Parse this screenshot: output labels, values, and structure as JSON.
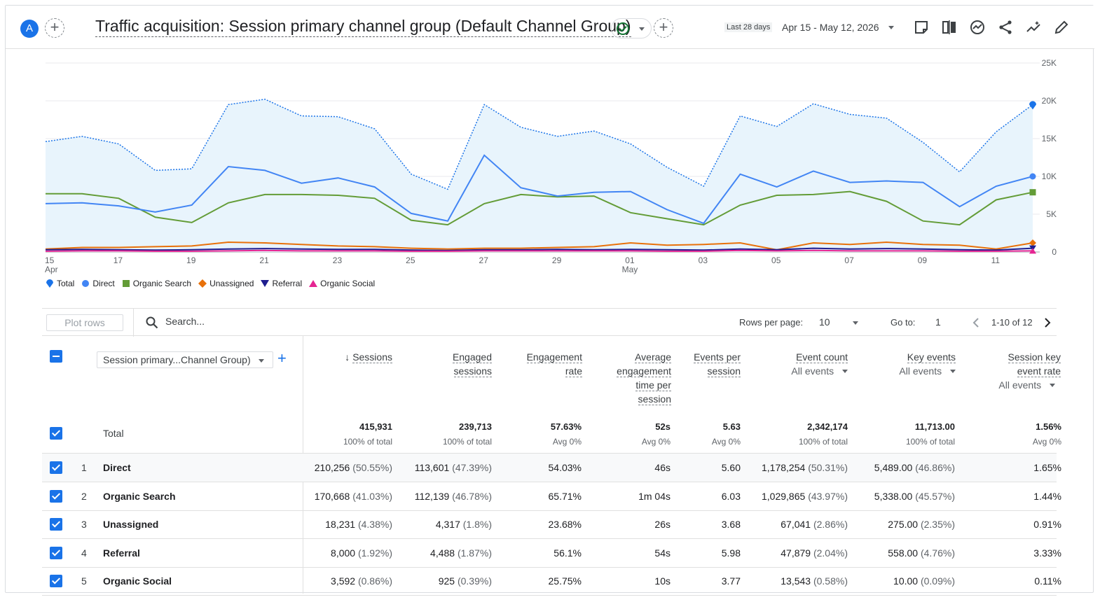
{
  "header": {
    "avatar_letter": "A",
    "title": "Traffic acquisition: Session primary channel group (Default Channel Group)",
    "date_label": "Last 28 days",
    "date_range": "Apr 15 - May 12, 2026"
  },
  "chart_data": {
    "type": "line",
    "x": [
      "Apr 15",
      "Apr 16",
      "Apr 17",
      "Apr 18",
      "Apr 19",
      "Apr 20",
      "Apr 21",
      "Apr 22",
      "Apr 23",
      "Apr 24",
      "Apr 25",
      "Apr 26",
      "Apr 27",
      "Apr 28",
      "Apr 29",
      "Apr 30",
      "May 01",
      "May 02",
      "May 03",
      "May 04",
      "May 05",
      "May 06",
      "May 07",
      "May 08",
      "May 09",
      "May 10",
      "May 11",
      "May 12"
    ],
    "x_tick_labels": [
      {
        "idx": 0,
        "label": "15",
        "sub": "Apr"
      },
      {
        "idx": 2,
        "label": "17"
      },
      {
        "idx": 4,
        "label": "19"
      },
      {
        "idx": 6,
        "label": "21"
      },
      {
        "idx": 8,
        "label": "23"
      },
      {
        "idx": 10,
        "label": "25"
      },
      {
        "idx": 12,
        "label": "27"
      },
      {
        "idx": 14,
        "label": "29"
      },
      {
        "idx": 16,
        "label": "01",
        "sub": "May"
      },
      {
        "idx": 18,
        "label": "03"
      },
      {
        "idx": 20,
        "label": "05"
      },
      {
        "idx": 22,
        "label": "07"
      },
      {
        "idx": 24,
        "label": "09"
      },
      {
        "idx": 26,
        "label": "11"
      }
    ],
    "y_ticks": [
      "0",
      "5K",
      "10K",
      "15K",
      "20K",
      "25K"
    ],
    "ylim": [
      0,
      25000
    ],
    "grid": true,
    "legend_position": "bottom-left",
    "series": [
      {
        "name": "Total",
        "color": "#1a73e8",
        "dashed": true,
        "filled": true,
        "values": [
          14600,
          15300,
          14300,
          10800,
          11000,
          19500,
          20200,
          18000,
          17900,
          16300,
          10300,
          8300,
          19500,
          16500,
          15300,
          16000,
          14300,
          11200,
          8700,
          18000,
          16600,
          19600,
          18200,
          17700,
          14500,
          10600,
          15900,
          19500
        ]
      },
      {
        "name": "Direct",
        "color": "#4285f4",
        "values": [
          6400,
          6500,
          6100,
          5300,
          6200,
          11300,
          10800,
          9100,
          9800,
          8600,
          5100,
          4100,
          12800,
          8500,
          7400,
          7900,
          8000,
          5600,
          3800,
          10300,
          8600,
          10700,
          9200,
          9400,
          9200,
          6000,
          8700,
          10000
        ]
      },
      {
        "name": "Organic Search",
        "color": "#639c37",
        "values": [
          7700,
          7700,
          7100,
          4600,
          3900,
          6500,
          7600,
          7600,
          7500,
          7100,
          4200,
          3600,
          6400,
          7600,
          7300,
          7400,
          5200,
          4400,
          3600,
          6200,
          7500,
          7600,
          8000,
          6700,
          4100,
          3600,
          6900,
          7900
        ]
      },
      {
        "name": "Unassigned",
        "color": "#e8710a",
        "values": [
          400,
          600,
          600,
          700,
          800,
          1300,
          1200,
          1000,
          800,
          700,
          500,
          400,
          500,
          500,
          600,
          700,
          1200,
          900,
          1000,
          1200,
          300,
          1200,
          1000,
          1300,
          1000,
          900,
          400,
          1200
        ]
      },
      {
        "name": "Referral",
        "color": "#1f1e8f",
        "values": [
          300,
          350,
          300,
          250,
          300,
          400,
          450,
          400,
          350,
          350,
          250,
          200,
          300,
          300,
          350,
          300,
          350,
          300,
          250,
          400,
          300,
          500,
          400,
          450,
          400,
          300,
          250,
          500
        ]
      },
      {
        "name": "Organic Social",
        "color": "#e52592",
        "values": [
          100,
          150,
          150,
          100,
          100,
          150,
          200,
          150,
          150,
          150,
          100,
          100,
          150,
          150,
          150,
          150,
          150,
          100,
          100,
          200,
          150,
          200,
          150,
          150,
          150,
          100,
          100,
          150
        ]
      }
    ]
  },
  "legend": [
    {
      "label": "Total",
      "color": "#1a73e8",
      "shape": "pin"
    },
    {
      "label": "Direct",
      "color": "#4285f4",
      "shape": "circle"
    },
    {
      "label": "Organic Search",
      "color": "#639c37",
      "shape": "square"
    },
    {
      "label": "Unassigned",
      "color": "#e8710a",
      "shape": "diamond"
    },
    {
      "label": "Referral",
      "color": "#1f1e8f",
      "shape": "triangle-down"
    },
    {
      "label": "Organic Social",
      "color": "#e52592",
      "shape": "triangle-up"
    }
  ],
  "toolbar": {
    "plot_rows": "Plot rows",
    "search_placeholder": "Search...",
    "rows_per_page_label": "Rows per page:",
    "rows_per_page_value": "10",
    "goto_label": "Go to:",
    "goto_value": "1",
    "pagination": "1-10 of 12"
  },
  "table": {
    "dimension": "Session primary...Channel Group)",
    "columns": [
      {
        "label": "Sessions",
        "sorted": true
      },
      {
        "label": "Engaged sessions"
      },
      {
        "label": "Engagement rate"
      },
      {
        "label": "Average engagement time per session"
      },
      {
        "label": "Events per session"
      },
      {
        "label": "Event count",
        "sub": "All events"
      },
      {
        "label": "Key events",
        "sub": "All events"
      },
      {
        "label": "Session key event rate",
        "sub": "All events"
      }
    ],
    "total": {
      "label": "Total",
      "values": [
        "415,931",
        "239,713",
        "57.63%",
        "52s",
        "5.63",
        "2,342,174",
        "11,713.00",
        "1.56%"
      ],
      "subs": [
        "100% of total",
        "100% of total",
        "Avg 0%",
        "Avg 0%",
        "Avg 0%",
        "100% of total",
        "100% of total",
        "Avg 0%"
      ]
    },
    "rows": [
      {
        "idx": "1",
        "name": "Direct",
        "values": [
          "210,256",
          "113,601",
          "54.03%",
          "46s",
          "5.60",
          "1,178,254",
          "5,489.00",
          "1.65%"
        ],
        "pcts": [
          "(50.55%)",
          "(47.39%)",
          "",
          "",
          "",
          "(50.31%)",
          "(46.86%)",
          ""
        ]
      },
      {
        "idx": "2",
        "name": "Organic Search",
        "values": [
          "170,668",
          "112,139",
          "65.71%",
          "1m 04s",
          "6.03",
          "1,029,865",
          "5,338.00",
          "1.44%"
        ],
        "pcts": [
          "(41.03%)",
          "(46.78%)",
          "",
          "",
          "",
          "(43.97%)",
          "(45.57%)",
          ""
        ]
      },
      {
        "idx": "3",
        "name": "Unassigned",
        "values": [
          "18,231",
          "4,317",
          "23.68%",
          "26s",
          "3.68",
          "67,041",
          "275.00",
          "0.91%"
        ],
        "pcts": [
          "(4.38%)",
          "(1.8%)",
          "",
          "",
          "",
          "(2.86%)",
          "(2.35%)",
          ""
        ]
      },
      {
        "idx": "4",
        "name": "Referral",
        "values": [
          "8,000",
          "4,488",
          "56.1%",
          "54s",
          "5.98",
          "47,879",
          "558.00",
          "3.33%"
        ],
        "pcts": [
          "(1.92%)",
          "(1.87%)",
          "",
          "",
          "",
          "(2.04%)",
          "(4.76%)",
          ""
        ]
      },
      {
        "idx": "5",
        "name": "Organic Social",
        "values": [
          "3,592",
          "925",
          "25.75%",
          "10s",
          "3.77",
          "13,543",
          "10.00",
          "0.11%"
        ],
        "pcts": [
          "(0.86%)",
          "(0.39%)",
          "",
          "",
          "",
          "(0.58%)",
          "(0.09%)",
          ""
        ]
      }
    ]
  }
}
